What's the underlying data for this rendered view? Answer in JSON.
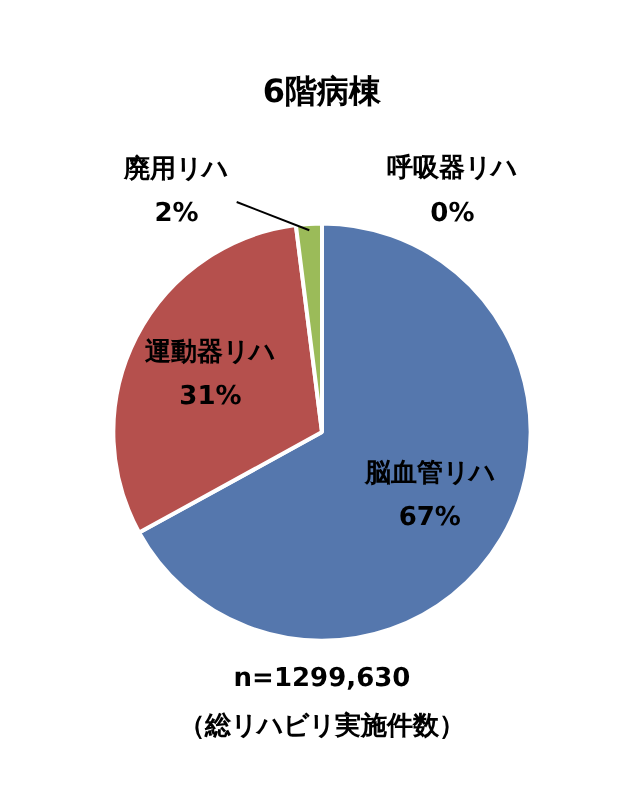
{
  "chart_data": {
    "type": "pie",
    "title": "6階病棟",
    "categories": [
      "脳血管リハ",
      "運動器リハ",
      "廃用リハ",
      "呼吸器リハ"
    ],
    "values": [
      67,
      31,
      2,
      0
    ],
    "colors": [
      "#5577ad",
      "#b5504d",
      "#9bbb59",
      "#8064a2"
    ],
    "value_labels": [
      "67%",
      "31%",
      "2%",
      "0%"
    ],
    "annotations": [
      "n=1299,630",
      "（総リハビリ実施件数）"
    ]
  }
}
